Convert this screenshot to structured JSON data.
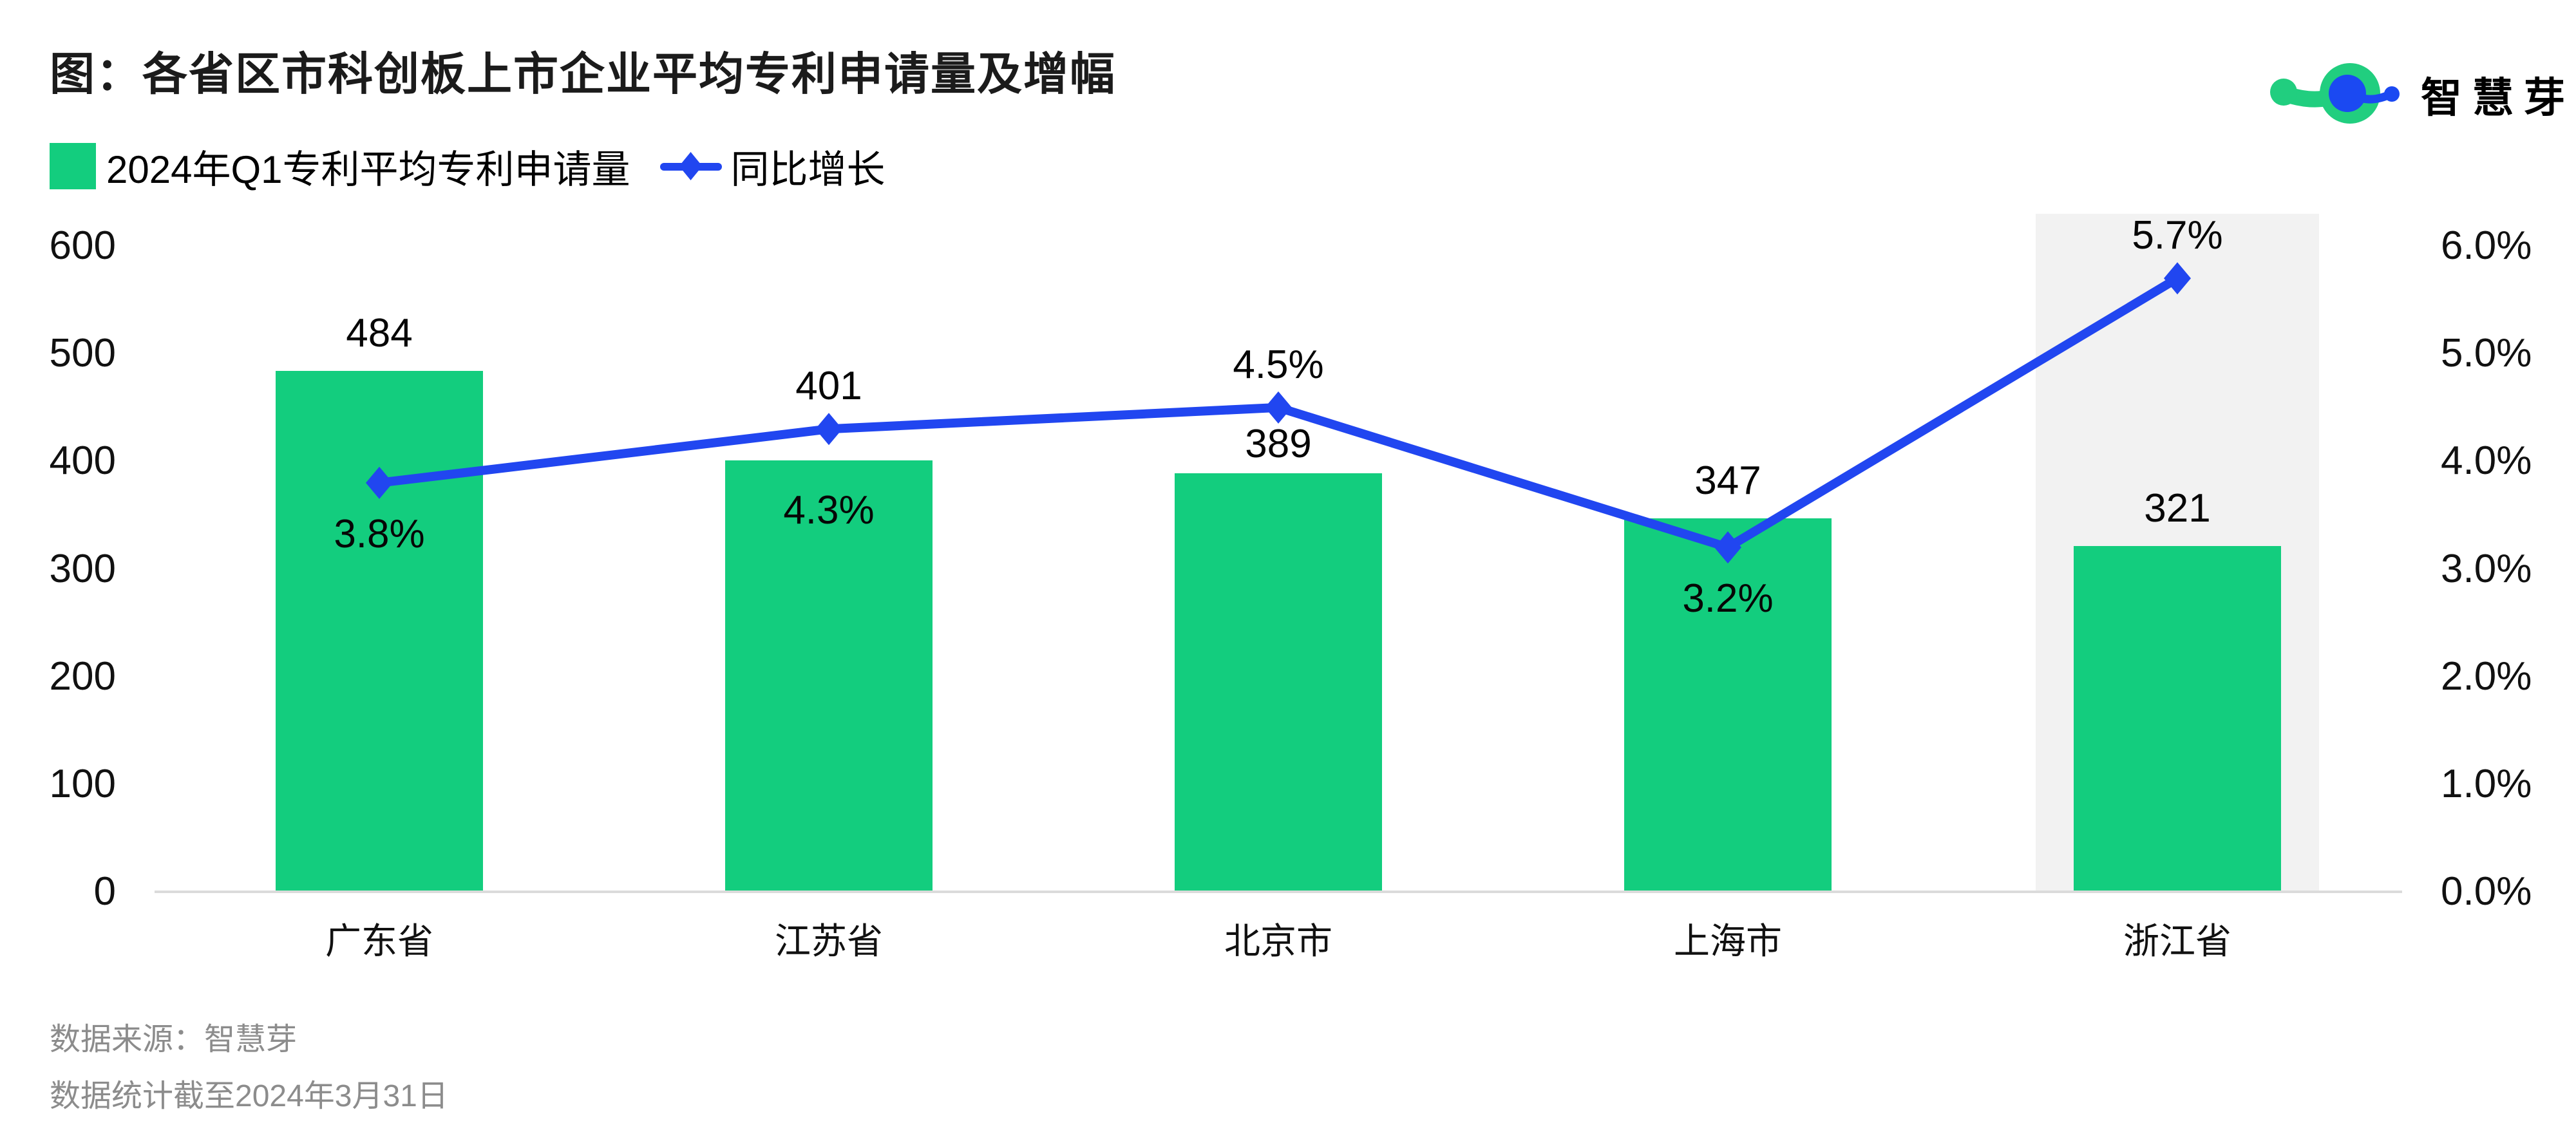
{
  "title": "图：各省区市科创板上市企业平均专利申请量及增幅",
  "logo": {
    "brand_text": "智慧芽",
    "icon": "patsnap-molecule-logo",
    "green": "#21ce7f",
    "blue": "#1b49f2"
  },
  "legend": {
    "items": [
      {
        "label": "2024年Q1专利平均专利申请量",
        "marker": "bar-swatch"
      },
      {
        "label": "同比增长",
        "marker": "line-diamond"
      }
    ]
  },
  "footer": {
    "source": "数据来源：智慧芽",
    "cutoff": "数据统计截至2024年3月31日"
  },
  "colors": {
    "bar_green": "#13cd7e",
    "line_blue": "#2146f0",
    "highlight_band": "#f2f2f2",
    "axis_line": "#dbdbdb",
    "footer_text": "#8c8c8c",
    "title_text": "#1b1b1b",
    "label_text": "#060606"
  },
  "chart_data": {
    "type": "bar+line",
    "title": "各省区市科创板上市企业平均专利申请量及增幅",
    "categories": [
      "广东省",
      "江苏省",
      "北京市",
      "上海市",
      "浙江省"
    ],
    "series": [
      {
        "name": "2024年Q1专利平均专利申请量",
        "type": "bar",
        "axis": "left",
        "color": "#13cd7e",
        "values": [
          484,
          401,
          389,
          347,
          321
        ],
        "data_labels": [
          "484",
          "401",
          "389",
          "347",
          "321"
        ]
      },
      {
        "name": "同比增长",
        "type": "line",
        "axis": "right",
        "color": "#2146f0",
        "values_pct": [
          3.8,
          4.3,
          4.5,
          3.2,
          5.7
        ],
        "data_labels": [
          "3.8%",
          "4.3%",
          "4.5%",
          "3.2%",
          "5.7%"
        ]
      }
    ],
    "left_axis": {
      "min": 0,
      "max": 630,
      "tick_values": [
        600,
        500,
        400,
        300,
        200,
        100,
        0
      ],
      "tick_labels": [
        "600",
        "500",
        "400",
        "300",
        "200",
        "100",
        "0"
      ]
    },
    "right_axis": {
      "min": 0,
      "max": 6.3,
      "tick_labels": [
        "6.0%",
        "5.0%",
        "4.0%",
        "3.0%",
        "2.0%",
        "1.0%",
        "0.0%"
      ]
    },
    "grid": false,
    "legend_position": "top-left",
    "highlight_category": "浙江省",
    "highlight_color": "#f2f2f2",
    "label_layout": {
      "value_label_pos": [
        "above-bar",
        "above-marker",
        "between-marker-and-bar",
        "above-bar",
        "above-bar"
      ],
      "pct_label_pos": [
        "below-marker",
        "inside-bar",
        "above-marker",
        "below-marker",
        "above-marker"
      ]
    }
  }
}
